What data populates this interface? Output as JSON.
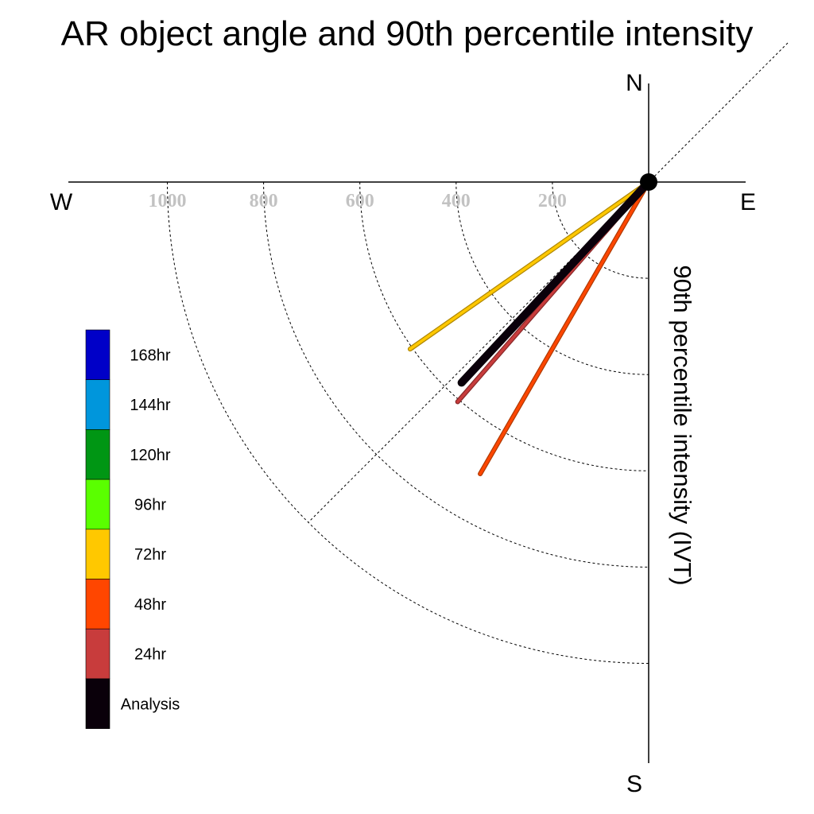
{
  "chart_data": {
    "type": "polar-vector",
    "title": "AR object angle and 90th percentile intensity",
    "ylabel": "90th percentile intensity (IVT)",
    "compass": {
      "north": "N",
      "south": "S",
      "east": "E",
      "west": "W"
    },
    "radial_ticks": [
      "200",
      "400",
      "600",
      "800",
      "1000"
    ],
    "radial_values": [
      200,
      400,
      600,
      800,
      1000
    ],
    "rmax": 1200,
    "grid": true,
    "diagonal_reference": true,
    "origin_marker": true,
    "legend_position": "left",
    "legend": [
      {
        "label": "168hr",
        "color": "#0000c8"
      },
      {
        "label": "144hr",
        "color": "#0096dc"
      },
      {
        "label": "120hr",
        "color": "#009614"
      },
      {
        "label": "96hr",
        "color": "#5aff00"
      },
      {
        "label": "72hr",
        "color": "#ffc800"
      },
      {
        "label": "48hr",
        "color": "#ff4600"
      },
      {
        "label": "24hr",
        "color": "#c83c3c"
      },
      {
        "label": "Analysis",
        "color": "#0a000a"
      }
    ],
    "series": [
      {
        "name": "48hr",
        "color": "#ff4600",
        "outline": "#b03a00",
        "angle_deg": 210,
        "intensity": 700
      },
      {
        "name": "24hr",
        "color": "#c83c3c",
        "outline": "#8a2a2a",
        "angle_deg": 221,
        "intensity": 605
      },
      {
        "name": "72hr",
        "color": "#ffc800",
        "outline": "#b08800",
        "angle_deg": 235,
        "intensity": 605
      },
      {
        "name": "Analysis",
        "color": "#0a000a",
        "outline": "#0a000a",
        "angle_deg": 223,
        "intensity": 570
      }
    ]
  }
}
